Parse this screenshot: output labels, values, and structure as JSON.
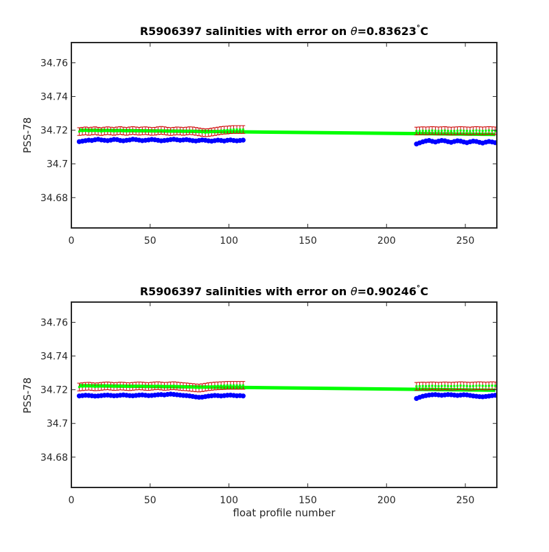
{
  "colors": {
    "raw": "#0000ff",
    "calibrated": "#00ff00",
    "error": "#cc0000",
    "axes": "#262626"
  },
  "chart_data": [
    {
      "type": "scatter",
      "title_main": "R5906397 salinities with error on ",
      "title_symbol": "θ",
      "title_value": "=0.83623",
      "title_degree": "°",
      "title_unit": "C",
      "xlabel": "",
      "ylabel": "PSS-78",
      "xlim": [
        0,
        270
      ],
      "ylim": [
        34.662,
        34.772
      ],
      "xticks": [
        0,
        50,
        100,
        150,
        200,
        250
      ],
      "xtick_labels": [
        "0",
        "50",
        "100",
        "150",
        "200",
        "250"
      ],
      "yticks": [
        34.68,
        34.7,
        34.72,
        34.74,
        34.76
      ],
      "ytick_labels": [
        "34.68",
        "34.7",
        "34.72",
        "34.74",
        "34.76"
      ],
      "series": [
        {
          "role": "raw",
          "segments": [
            {
              "x_start": 5,
              "x_end": 109,
              "y_values": [
                34.7132,
                34.7135,
                34.7138,
                34.7141,
                34.7139,
                34.7143,
                34.7146,
                34.7142,
                34.714,
                34.7138,
                34.7141,
                34.7145,
                34.7144,
                34.7139,
                34.7137,
                34.714,
                34.7142,
                34.7146,
                34.7144,
                34.7141,
                34.7138,
                34.714,
                34.7142,
                34.7145,
                34.7143,
                34.714,
                34.7137,
                34.7139,
                34.7141,
                34.7144,
                34.7146,
                34.7143,
                34.714,
                34.7142,
                34.7144,
                34.7141,
                34.7138,
                34.7136,
                34.7139,
                34.7142,
                34.714,
                34.7137,
                34.7135,
                34.7138,
                34.7141,
                34.7139,
                34.7136,
                34.714,
                34.7142,
                34.7139,
                34.7137,
                34.7139,
                34.7141
              ]
            },
            {
              "x_start": 219,
              "x_end": 269,
              "y_values": [
                34.7118,
                34.7125,
                34.7131,
                34.7136,
                34.7139,
                34.7134,
                34.713,
                34.7135,
                34.7139,
                34.7137,
                34.7132,
                34.7128,
                34.7133,
                34.7137,
                34.7135,
                34.713,
                34.7126,
                34.7131,
                34.7135,
                34.7133,
                34.7128,
                34.7124,
                34.7129,
                34.7133,
                34.713,
                34.7126
              ]
            }
          ]
        },
        {
          "role": "calibrated",
          "segments": [
            {
              "x_start": 5,
              "x_end": 269,
              "y_start": 34.72,
              "y_end": 34.7175
            }
          ]
        },
        {
          "role": "error",
          "half_width": 0.0023,
          "segments": [
            {
              "x_start": 5,
              "x_end": 109,
              "y_values": [
                34.7192,
                34.7194,
                34.7196,
                34.7193,
                34.7195,
                34.7197,
                34.7194,
                34.7192,
                34.7195,
                34.7197,
                34.7195,
                34.7193,
                34.7196,
                34.7198,
                34.7195,
                34.7193,
                34.7196,
                34.7198,
                34.7196,
                34.7194,
                34.7196,
                34.7197,
                34.7195,
                34.7193,
                34.7194,
                34.7197,
                34.7199,
                34.7197,
                34.7194,
                34.7192,
                34.7194,
                34.7196,
                34.7195,
                34.7193,
                34.7195,
                34.7197,
                34.7196,
                34.7193,
                34.719,
                34.7187,
                34.7185,
                34.7186,
                34.7189,
                34.7192,
                34.7195,
                34.7198,
                34.72,
                34.7201,
                34.7203,
                34.7204,
                34.7204,
                34.7204,
                34.7204
              ]
            },
            {
              "x_start": 219,
              "x_end": 269,
              "y_values": [
                34.7195,
                34.7196,
                34.7197,
                34.7196,
                34.7197,
                34.7198,
                34.7197,
                34.7196,
                34.7197,
                34.7198,
                34.7196,
                34.7195,
                34.7196,
                34.7197,
                34.7198,
                34.7197,
                34.7196,
                34.7195,
                34.7197,
                34.7198,
                34.7197,
                34.7196,
                34.7197,
                34.7198,
                34.7197,
                34.7196
              ]
            }
          ]
        }
      ]
    },
    {
      "type": "scatter",
      "title_main": "R5906397 salinities with error on ",
      "title_symbol": "θ",
      "title_value": "=0.90246",
      "title_degree": "°",
      "title_unit": "C",
      "xlabel": "float profile number",
      "ylabel": "PSS-78",
      "xlim": [
        0,
        270
      ],
      "ylim": [
        34.662,
        34.772
      ],
      "xticks": [
        0,
        50,
        100,
        150,
        200,
        250
      ],
      "xtick_labels": [
        "0",
        "50",
        "100",
        "150",
        "200",
        "250"
      ],
      "yticks": [
        34.68,
        34.7,
        34.72,
        34.74,
        34.76
      ],
      "ytick_labels": [
        "34.68",
        "34.7",
        "34.72",
        "34.74",
        "34.76"
      ],
      "series": [
        {
          "role": "raw",
          "segments": [
            {
              "x_start": 5,
              "x_end": 109,
              "y_values": [
                34.7163,
                34.7165,
                34.7167,
                34.7166,
                34.7164,
                34.7162,
                34.7163,
                34.7165,
                34.7167,
                34.7168,
                34.7166,
                34.7164,
                34.7165,
                34.7167,
                34.7169,
                34.7167,
                34.7165,
                34.7164,
                34.7166,
                34.7168,
                34.7169,
                34.7167,
                34.7165,
                34.7166,
                34.7168,
                34.717,
                34.7171,
                34.7169,
                34.7172,
                34.7174,
                34.7172,
                34.717,
                34.7168,
                34.7166,
                34.7165,
                34.7163,
                34.716,
                34.7157,
                34.7155,
                34.7156,
                34.7159,
                34.7162,
                34.7164,
                34.7166,
                34.7165,
                34.7163,
                34.7165,
                34.7167,
                34.7168,
                34.7166,
                34.7164,
                34.7165,
                34.7163
              ]
            },
            {
              "x_start": 219,
              "x_end": 269,
              "y_values": [
                34.7148,
                34.7155,
                34.7161,
                34.7165,
                34.7168,
                34.717,
                34.7171,
                34.7169,
                34.7167,
                34.7169,
                34.7171,
                34.717,
                34.7168,
                34.7166,
                34.7168,
                34.717,
                34.7169,
                34.7166,
                34.7163,
                34.7161,
                34.7159,
                34.7158,
                34.716,
                34.7162,
                34.7165,
                34.7167
              ]
            }
          ]
        },
        {
          "role": "calibrated",
          "segments": [
            {
              "x_start": 5,
              "x_end": 269,
              "y_start": 34.7224,
              "y_end": 34.7197
            }
          ]
        },
        {
          "role": "error",
          "half_width": 0.0023,
          "segments": [
            {
              "x_start": 5,
              "x_end": 109,
              "y_values": [
                34.7216,
                34.7218,
                34.722,
                34.7221,
                34.7219,
                34.7217,
                34.7218,
                34.722,
                34.7222,
                34.7223,
                34.7221,
                34.7219,
                34.722,
                34.7222,
                34.7221,
                34.7219,
                34.7218,
                34.722,
                34.7222,
                34.7223,
                34.7222,
                34.722,
                34.7219,
                34.7221,
                34.7223,
                34.7224,
                34.7222,
                34.722,
                34.7221,
                34.7223,
                34.7224,
                34.7222,
                34.722,
                34.7218,
                34.7217,
                34.7215,
                34.7213,
                34.7211,
                34.721,
                34.7212,
                34.7215,
                34.7218,
                34.722,
                34.7222,
                34.7223,
                34.7224,
                34.7225,
                34.7226,
                34.7226,
                34.7226,
                34.7226,
                34.7226,
                34.7226
              ]
            },
            {
              "x_start": 219,
              "x_end": 269,
              "y_values": [
                34.722,
                34.7221,
                34.7222,
                34.7221,
                34.7222,
                34.7223,
                34.7222,
                34.7221,
                34.7222,
                34.7223,
                34.7222,
                34.7221,
                34.7222,
                34.7223,
                34.7224,
                34.7223,
                34.7222,
                34.7221,
                34.7222,
                34.7223,
                34.7224,
                34.7223,
                34.7222,
                34.7223,
                34.7224,
                34.7223
              ]
            }
          ]
        }
      ]
    }
  ]
}
